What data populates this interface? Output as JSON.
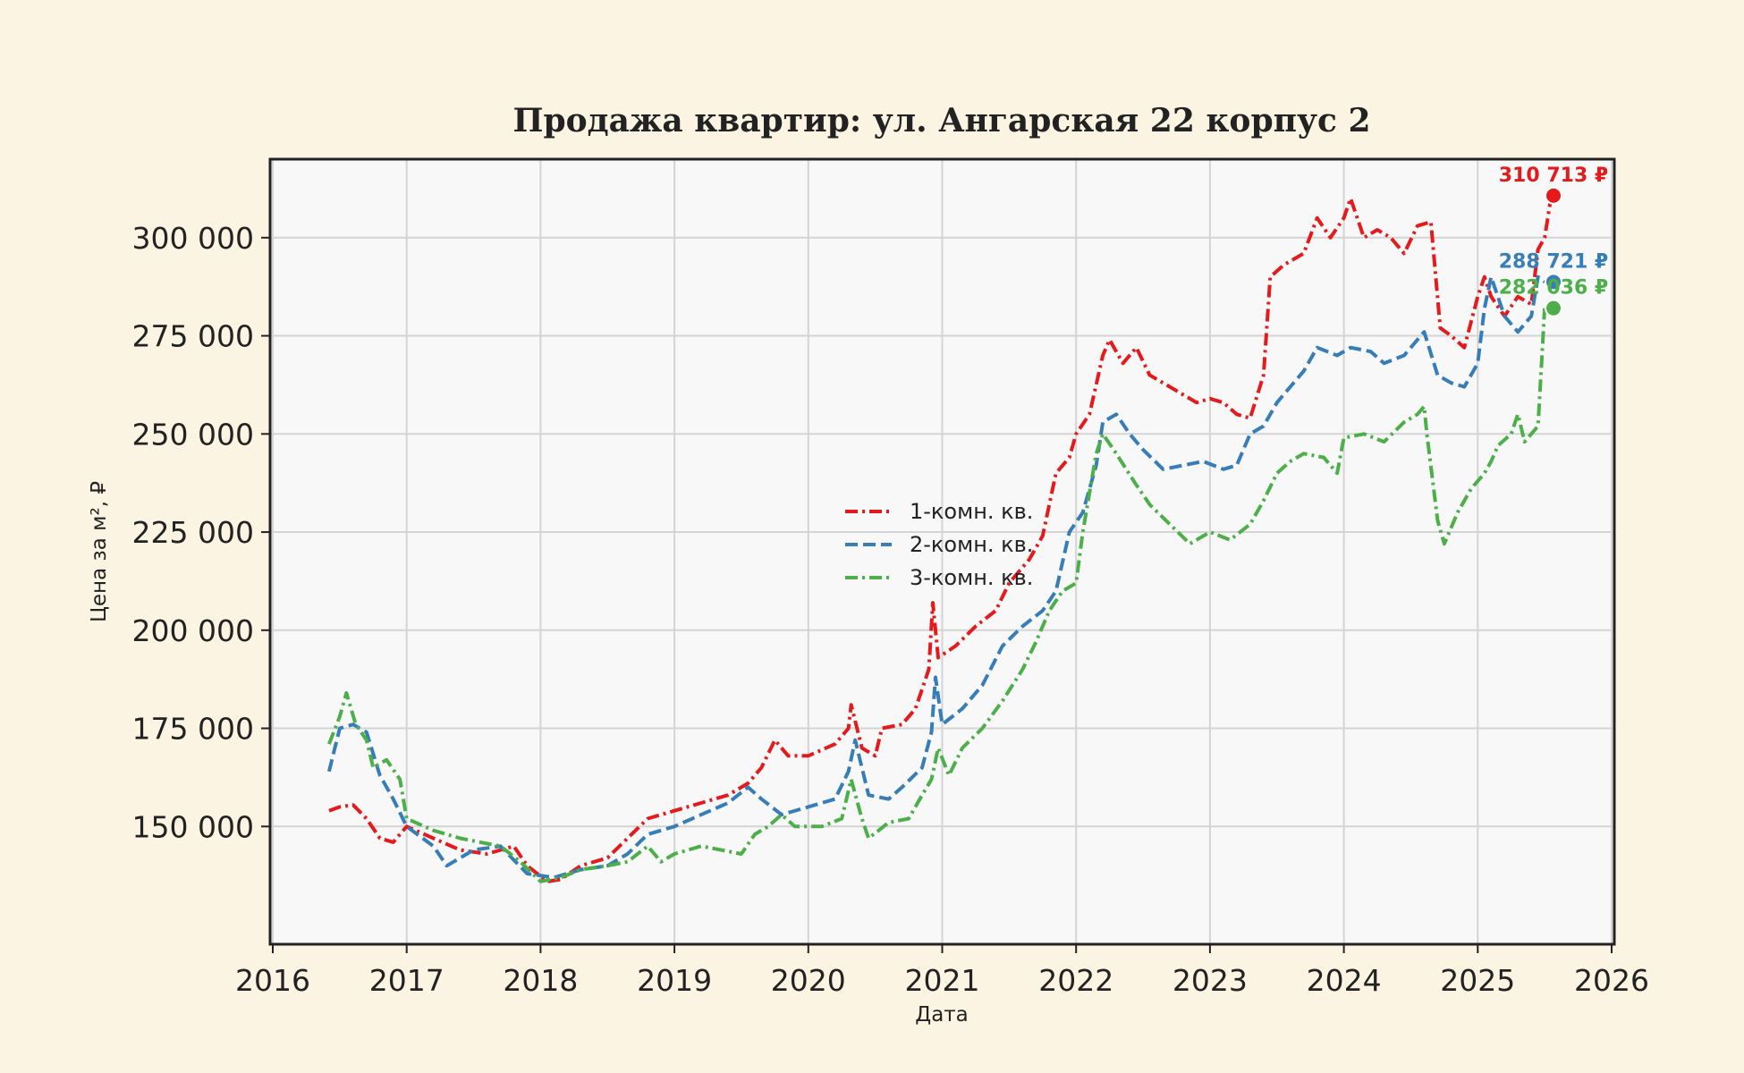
{
  "chart_data": {
    "type": "line",
    "title": "Продажа квартир: ул. Ангарская 22 корпус 2",
    "xlabel": "Дата",
    "ylabel": "Цена за м², ₽",
    "xlim": [
      2016,
      2026
    ],
    "ylim": [
      120000,
      320000
    ],
    "x_ticks": [
      "2016",
      "2017",
      "2018",
      "2019",
      "2020",
      "2021",
      "2022",
      "2023",
      "2024",
      "2025",
      "2026"
    ],
    "y_ticks": [
      "150 000",
      "175 000",
      "200 000",
      "225 000",
      "250 000",
      "275 000",
      "300 000"
    ],
    "y_tick_values": [
      150000,
      175000,
      200000,
      225000,
      250000,
      275000,
      300000
    ],
    "grid": true,
    "legend": {
      "placement": "center",
      "entries": [
        "1-комн. кв.",
        "2-комн. кв.",
        "3-комн. кв."
      ]
    },
    "series": [
      {
        "name": "1-комн. кв.",
        "color": "#e41a1c",
        "dash": "dash-dot",
        "end_label": "310 713 ₽",
        "end_value": 310713,
        "points": [
          [
            2016.42,
            154000
          ],
          [
            2016.5,
            155000
          ],
          [
            2016.6,
            155500
          ],
          [
            2016.7,
            152000
          ],
          [
            2016.8,
            147000
          ],
          [
            2016.9,
            146000
          ],
          [
            2017.0,
            150000
          ],
          [
            2017.2,
            147000
          ],
          [
            2017.4,
            144000
          ],
          [
            2017.6,
            143000
          ],
          [
            2017.8,
            145000
          ],
          [
            2017.9,
            140000
          ],
          [
            2018.05,
            136000
          ],
          [
            2018.15,
            136500
          ],
          [
            2018.3,
            140000
          ],
          [
            2018.5,
            142000
          ],
          [
            2018.65,
            147000
          ],
          [
            2018.8,
            152000
          ],
          [
            2019.0,
            154000
          ],
          [
            2019.2,
            156000
          ],
          [
            2019.4,
            158000
          ],
          [
            2019.55,
            161000
          ],
          [
            2019.65,
            165000
          ],
          [
            2019.75,
            172000
          ],
          [
            2019.85,
            168000
          ],
          [
            2020.0,
            168000
          ],
          [
            2020.2,
            171000
          ],
          [
            2020.3,
            175000
          ],
          [
            2020.32,
            181000
          ],
          [
            2020.4,
            170000
          ],
          [
            2020.5,
            168000
          ],
          [
            2020.55,
            175000
          ],
          [
            2020.7,
            176000
          ],
          [
            2020.8,
            180000
          ],
          [
            2020.9,
            190000
          ],
          [
            2020.93,
            207000
          ],
          [
            2020.97,
            193000
          ],
          [
            2021.1,
            196000
          ],
          [
            2021.25,
            201000
          ],
          [
            2021.4,
            205000
          ],
          [
            2021.5,
            212000
          ],
          [
            2021.65,
            218000
          ],
          [
            2021.75,
            224000
          ],
          [
            2021.85,
            240000
          ],
          [
            2021.95,
            244000
          ],
          [
            2022.0,
            250000
          ],
          [
            2022.1,
            255000
          ],
          [
            2022.2,
            270000
          ],
          [
            2022.25,
            274000
          ],
          [
            2022.35,
            268000
          ],
          [
            2022.45,
            272000
          ],
          [
            2022.55,
            265000
          ],
          [
            2022.7,
            262000
          ],
          [
            2022.8,
            260000
          ],
          [
            2022.9,
            258000
          ],
          [
            2023.0,
            259000
          ],
          [
            2023.1,
            258000
          ],
          [
            2023.2,
            255000
          ],
          [
            2023.3,
            254000
          ],
          [
            2023.4,
            265000
          ],
          [
            2023.45,
            290000
          ],
          [
            2023.55,
            293000
          ],
          [
            2023.7,
            296000
          ],
          [
            2023.8,
            305000
          ],
          [
            2023.9,
            300000
          ],
          [
            2024.0,
            305000
          ],
          [
            2024.05,
            310000
          ],
          [
            2024.15,
            300000
          ],
          [
            2024.25,
            302000
          ],
          [
            2024.35,
            300000
          ],
          [
            2024.45,
            296000
          ],
          [
            2024.55,
            303000
          ],
          [
            2024.65,
            304000
          ],
          [
            2024.72,
            277000
          ],
          [
            2024.8,
            275000
          ],
          [
            2024.9,
            272000
          ],
          [
            2025.0,
            285000
          ],
          [
            2025.05,
            290000
          ],
          [
            2025.1,
            285000
          ],
          [
            2025.2,
            280000
          ],
          [
            2025.3,
            285000
          ],
          [
            2025.4,
            283000
          ],
          [
            2025.45,
            297000
          ],
          [
            2025.5,
            300000
          ],
          [
            2025.55,
            310713
          ]
        ]
      },
      {
        "name": "2-комн. кв.",
        "color": "#377eb8",
        "dash": "dashed",
        "end_label": "288 721 ₽",
        "end_value": 288721,
        "points": [
          [
            2016.42,
            164000
          ],
          [
            2016.5,
            175000
          ],
          [
            2016.6,
            176000
          ],
          [
            2016.7,
            174000
          ],
          [
            2016.8,
            163000
          ],
          [
            2016.9,
            157000
          ],
          [
            2017.0,
            150000
          ],
          [
            2017.2,
            145000
          ],
          [
            2017.3,
            140000
          ],
          [
            2017.5,
            144000
          ],
          [
            2017.7,
            145000
          ],
          [
            2017.9,
            138000
          ],
          [
            2018.1,
            137000
          ],
          [
            2018.3,
            139000
          ],
          [
            2018.5,
            140000
          ],
          [
            2018.65,
            143000
          ],
          [
            2018.8,
            148000
          ],
          [
            2019.0,
            150000
          ],
          [
            2019.2,
            153000
          ],
          [
            2019.4,
            156000
          ],
          [
            2019.55,
            160000
          ],
          [
            2019.65,
            157000
          ],
          [
            2019.8,
            153000
          ],
          [
            2020.0,
            155000
          ],
          [
            2020.2,
            157000
          ],
          [
            2020.3,
            164000
          ],
          [
            2020.35,
            172000
          ],
          [
            2020.45,
            158000
          ],
          [
            2020.6,
            157000
          ],
          [
            2020.7,
            160000
          ],
          [
            2020.85,
            165000
          ],
          [
            2020.92,
            174000
          ],
          [
            2020.95,
            188000
          ],
          [
            2021.0,
            176000
          ],
          [
            2021.15,
            180000
          ],
          [
            2021.3,
            186000
          ],
          [
            2021.45,
            196000
          ],
          [
            2021.6,
            201000
          ],
          [
            2021.75,
            205000
          ],
          [
            2021.85,
            210000
          ],
          [
            2021.95,
            225000
          ],
          [
            2022.05,
            230000
          ],
          [
            2022.15,
            242000
          ],
          [
            2022.2,
            253000
          ],
          [
            2022.3,
            255000
          ],
          [
            2022.4,
            250000
          ],
          [
            2022.5,
            246000
          ],
          [
            2022.65,
            241000
          ],
          [
            2022.8,
            242000
          ],
          [
            2022.95,
            243000
          ],
          [
            2023.1,
            241000
          ],
          [
            2023.2,
            242000
          ],
          [
            2023.3,
            250000
          ],
          [
            2023.4,
            252000
          ],
          [
            2023.5,
            258000
          ],
          [
            2023.6,
            262000
          ],
          [
            2023.7,
            266000
          ],
          [
            2023.8,
            272000
          ],
          [
            2023.95,
            270000
          ],
          [
            2024.05,
            272000
          ],
          [
            2024.2,
            271000
          ],
          [
            2024.3,
            268000
          ],
          [
            2024.45,
            270000
          ],
          [
            2024.55,
            274000
          ],
          [
            2024.6,
            276000
          ],
          [
            2024.7,
            265000
          ],
          [
            2024.8,
            263000
          ],
          [
            2024.9,
            262000
          ],
          [
            2025.0,
            268000
          ],
          [
            2025.05,
            282000
          ],
          [
            2025.1,
            290000
          ],
          [
            2025.2,
            280000
          ],
          [
            2025.3,
            276000
          ],
          [
            2025.4,
            280000
          ],
          [
            2025.45,
            290000
          ],
          [
            2025.5,
            288721
          ]
        ]
      },
      {
        "name": "3-комн. кв.",
        "color": "#4daf4a",
        "dash": "dash-dot",
        "end_label": "282 036 ₽",
        "end_value": 282036,
        "points": [
          [
            2016.42,
            171000
          ],
          [
            2016.5,
            178000
          ],
          [
            2016.55,
            184000
          ],
          [
            2016.62,
            176000
          ],
          [
            2016.7,
            172000
          ],
          [
            2016.75,
            165000
          ],
          [
            2016.85,
            167000
          ],
          [
            2016.95,
            162000
          ],
          [
            2017.0,
            152000
          ],
          [
            2017.2,
            149000
          ],
          [
            2017.4,
            147000
          ],
          [
            2017.55,
            146000
          ],
          [
            2017.7,
            145000
          ],
          [
            2017.85,
            141000
          ],
          [
            2018.0,
            136000
          ],
          [
            2018.15,
            137000
          ],
          [
            2018.3,
            139000
          ],
          [
            2018.5,
            140000
          ],
          [
            2018.65,
            141000
          ],
          [
            2018.8,
            145000
          ],
          [
            2018.9,
            141000
          ],
          [
            2019.0,
            143000
          ],
          [
            2019.2,
            145000
          ],
          [
            2019.35,
            144000
          ],
          [
            2019.5,
            143000
          ],
          [
            2019.6,
            148000
          ],
          [
            2019.7,
            150000
          ],
          [
            2019.8,
            153000
          ],
          [
            2019.9,
            150000
          ],
          [
            2020.1,
            150000
          ],
          [
            2020.25,
            152000
          ],
          [
            2020.32,
            162000
          ],
          [
            2020.4,
            152000
          ],
          [
            2020.45,
            147000
          ],
          [
            2020.6,
            151000
          ],
          [
            2020.75,
            152000
          ],
          [
            2020.85,
            158000
          ],
          [
            2020.92,
            162000
          ],
          [
            2020.97,
            170000
          ],
          [
            2021.05,
            163000
          ],
          [
            2021.15,
            170000
          ],
          [
            2021.3,
            175000
          ],
          [
            2021.45,
            182000
          ],
          [
            2021.6,
            190000
          ],
          [
            2021.7,
            197000
          ],
          [
            2021.8,
            205000
          ],
          [
            2021.9,
            210000
          ],
          [
            2022.0,
            212000
          ],
          [
            2022.05,
            225000
          ],
          [
            2022.15,
            245000
          ],
          [
            2022.2,
            250000
          ],
          [
            2022.3,
            245000
          ],
          [
            2022.45,
            237000
          ],
          [
            2022.55,
            232000
          ],
          [
            2022.7,
            227000
          ],
          [
            2022.85,
            222000
          ],
          [
            2023.0,
            225000
          ],
          [
            2023.15,
            223000
          ],
          [
            2023.3,
            227000
          ],
          [
            2023.4,
            233000
          ],
          [
            2023.5,
            240000
          ],
          [
            2023.6,
            243000
          ],
          [
            2023.7,
            245000
          ],
          [
            2023.85,
            244000
          ],
          [
            2023.95,
            240000
          ],
          [
            2024.0,
            249000
          ],
          [
            2024.15,
            250000
          ],
          [
            2024.3,
            248000
          ],
          [
            2024.45,
            253000
          ],
          [
            2024.55,
            255000
          ],
          [
            2024.6,
            257000
          ],
          [
            2024.62,
            250000
          ],
          [
            2024.7,
            228000
          ],
          [
            2024.75,
            222000
          ],
          [
            2024.85,
            230000
          ],
          [
            2024.95,
            236000
          ],
          [
            2025.05,
            240000
          ],
          [
            2025.1,
            243000
          ],
          [
            2025.15,
            247000
          ],
          [
            2025.25,
            250000
          ],
          [
            2025.3,
            255000
          ],
          [
            2025.35,
            248000
          ],
          [
            2025.45,
            252000
          ],
          [
            2025.5,
            282036
          ]
        ]
      }
    ]
  }
}
